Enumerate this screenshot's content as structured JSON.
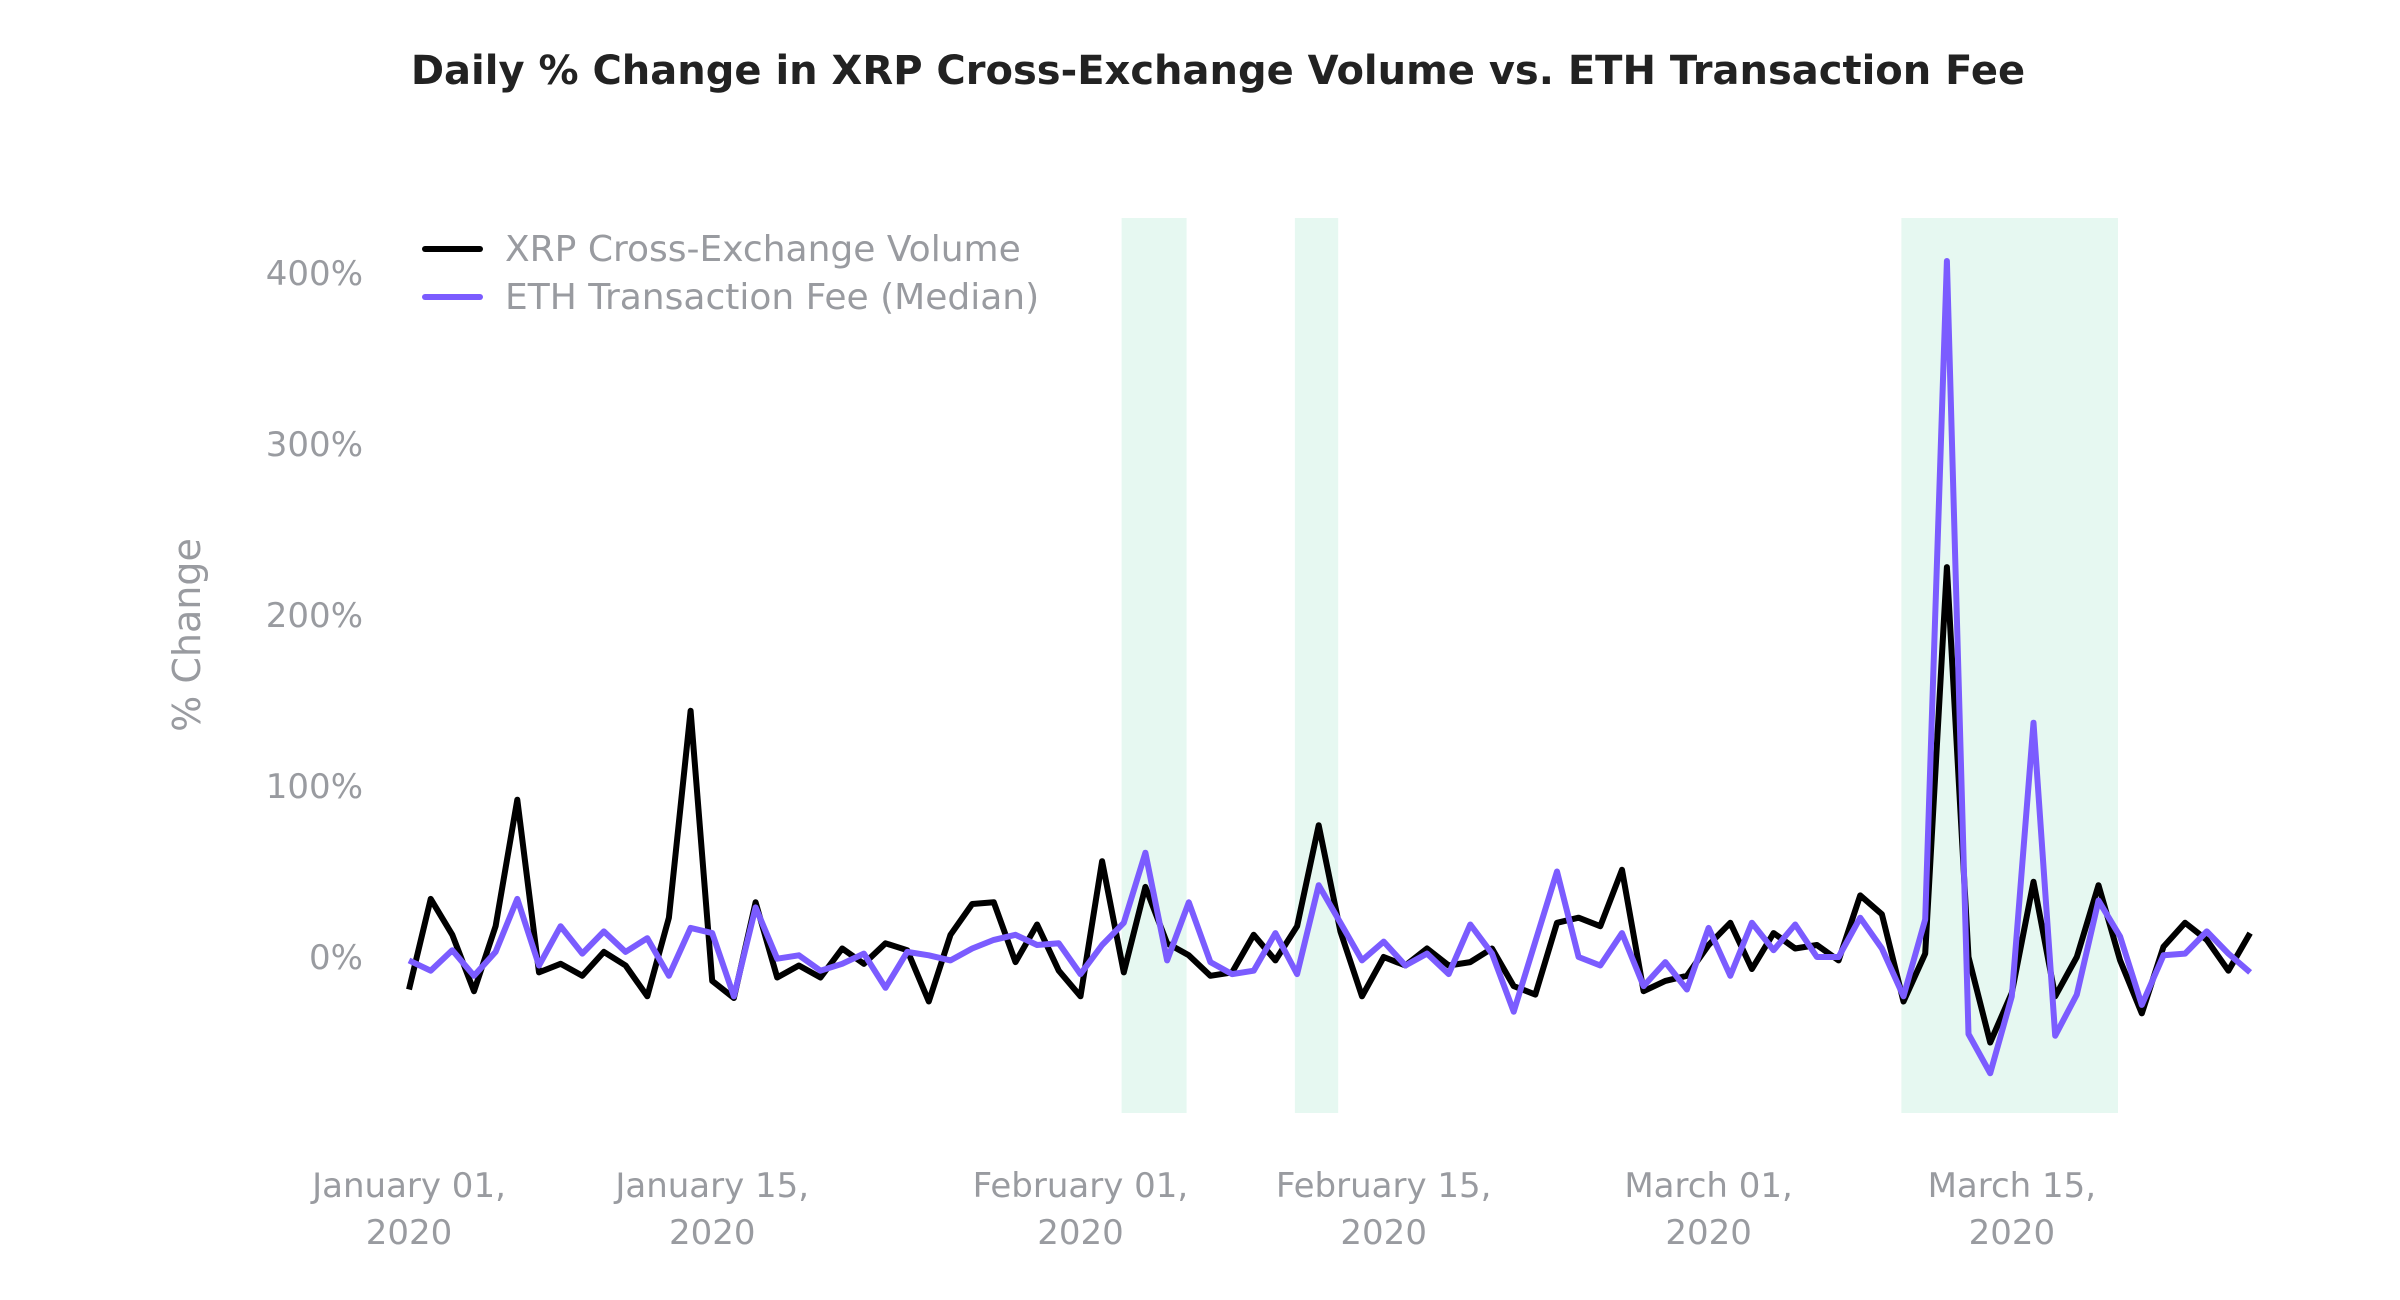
{
  "chart_data": {
    "type": "line",
    "title": "Daily % Change in XRP Cross-Exchange Volume vs. ETH Transaction Fee",
    "xlabel": "",
    "ylabel": "% Change",
    "ylim": [
      -90,
      430
    ],
    "yticks": [
      0,
      100,
      200,
      300,
      400
    ],
    "ytick_labels": [
      "0%",
      "100%",
      "200%",
      "300%",
      "400%"
    ],
    "xticks": [
      {
        "date": "2020-01-01",
        "label": [
          "January 01,",
          "2020"
        ]
      },
      {
        "date": "2020-01-15",
        "label": [
          "January 15,",
          "2020"
        ]
      },
      {
        "date": "2020-02-01",
        "label": [
          "February 01,",
          "2020"
        ]
      },
      {
        "date": "2020-02-15",
        "label": [
          "February 15,",
          "2020"
        ]
      },
      {
        "date": "2020-03-01",
        "label": [
          "March 01,",
          "2020"
        ]
      },
      {
        "date": "2020-03-15",
        "label": [
          "March 15,",
          "2020"
        ]
      }
    ],
    "grid": false,
    "legend_position": "top-left",
    "shaded_ranges": [
      {
        "start": "2020-02-03",
        "end": "2020-02-06"
      },
      {
        "start": "2020-02-11",
        "end": "2020-02-13"
      },
      {
        "start": "2020-03-10",
        "end": "2020-03-20"
      }
    ],
    "shade_color": "#e6f8f1",
    "x": [
      "2020-01-01",
      "2020-01-02",
      "2020-01-03",
      "2020-01-04",
      "2020-01-05",
      "2020-01-06",
      "2020-01-07",
      "2020-01-08",
      "2020-01-09",
      "2020-01-10",
      "2020-01-11",
      "2020-01-12",
      "2020-01-13",
      "2020-01-14",
      "2020-01-15",
      "2020-01-16",
      "2020-01-17",
      "2020-01-18",
      "2020-01-19",
      "2020-01-20",
      "2020-01-21",
      "2020-01-22",
      "2020-01-23",
      "2020-01-24",
      "2020-01-25",
      "2020-01-26",
      "2020-01-27",
      "2020-01-28",
      "2020-01-29",
      "2020-01-30",
      "2020-01-31",
      "2020-02-01",
      "2020-02-02",
      "2020-02-03",
      "2020-02-04",
      "2020-02-05",
      "2020-02-06",
      "2020-02-07",
      "2020-02-08",
      "2020-02-09",
      "2020-02-10",
      "2020-02-11",
      "2020-02-12",
      "2020-02-13",
      "2020-02-14",
      "2020-02-15",
      "2020-02-16",
      "2020-02-17",
      "2020-02-18",
      "2020-02-19",
      "2020-02-20",
      "2020-02-21",
      "2020-02-22",
      "2020-02-23",
      "2020-02-24",
      "2020-02-25",
      "2020-02-26",
      "2020-02-27",
      "2020-02-28",
      "2020-02-29",
      "2020-03-01",
      "2020-03-02",
      "2020-03-03",
      "2020-03-04",
      "2020-03-05",
      "2020-03-06",
      "2020-03-07",
      "2020-03-08",
      "2020-03-09",
      "2020-03-10",
      "2020-03-11",
      "2020-03-12",
      "2020-03-13",
      "2020-03-14",
      "2020-03-15",
      "2020-03-16",
      "2020-03-17",
      "2020-03-18",
      "2020-03-19",
      "2020-03-20",
      "2020-03-21",
      "2020-03-22",
      "2020-03-23",
      "2020-03-24",
      "2020-03-25",
      "2020-03-26"
    ],
    "series": [
      {
        "name": "XRP Cross-Exchange Volume",
        "color": "#000000",
        "values": [
          -19,
          34,
          13,
          -20,
          18,
          92,
          -9,
          -4,
          -11,
          3,
          -5,
          -23,
          23,
          144,
          -14,
          -24,
          32,
          -12,
          -5,
          -12,
          5,
          -4,
          8,
          4,
          -26,
          13,
          31,
          32,
          -3,
          19,
          -8,
          -23,
          56,
          -9,
          41,
          8,
          1,
          -11,
          -9,
          13,
          -2,
          18,
          77,
          15,
          -23,
          0,
          -5,
          5,
          -5,
          -3,
          5,
          -17,
          -22,
          20,
          23,
          18,
          51,
          -20,
          -14,
          -11,
          7,
          20,
          -7,
          14,
          5,
          7,
          -2,
          36,
          25,
          -26,
          2,
          228,
          0,
          -50,
          -21,
          44,
          -23,
          0,
          42,
          -2,
          -33,
          6,
          20,
          10,
          -8,
          14
        ]
      },
      {
        "name": "ETH Transaction Fee (Median)",
        "color": "#7b5cff",
        "values": [
          -2,
          -8,
          4,
          -11,
          3,
          34,
          -5,
          18,
          2,
          15,
          3,
          11,
          -11,
          17,
          14,
          -23,
          29,
          -1,
          1,
          -8,
          -4,
          2,
          -18,
          3,
          1,
          -2,
          5,
          10,
          13,
          7,
          8,
          -10,
          7,
          20,
          61,
          -2,
          32,
          -3,
          -10,
          -8,
          14,
          -10,
          42,
          20,
          -2,
          9,
          -5,
          2,
          -10,
          19,
          2,
          -32,
          9,
          50,
          0,
          -5,
          14,
          -17,
          -3,
          -19,
          17,
          -11,
          20,
          4,
          19,
          0,
          0,
          23,
          5,
          -23,
          22,
          407,
          -45,
          -68,
          -23,
          137,
          -46,
          -22,
          33,
          12,
          -28,
          1,
          2,
          15,
          2,
          -9
        ]
      }
    ]
  }
}
